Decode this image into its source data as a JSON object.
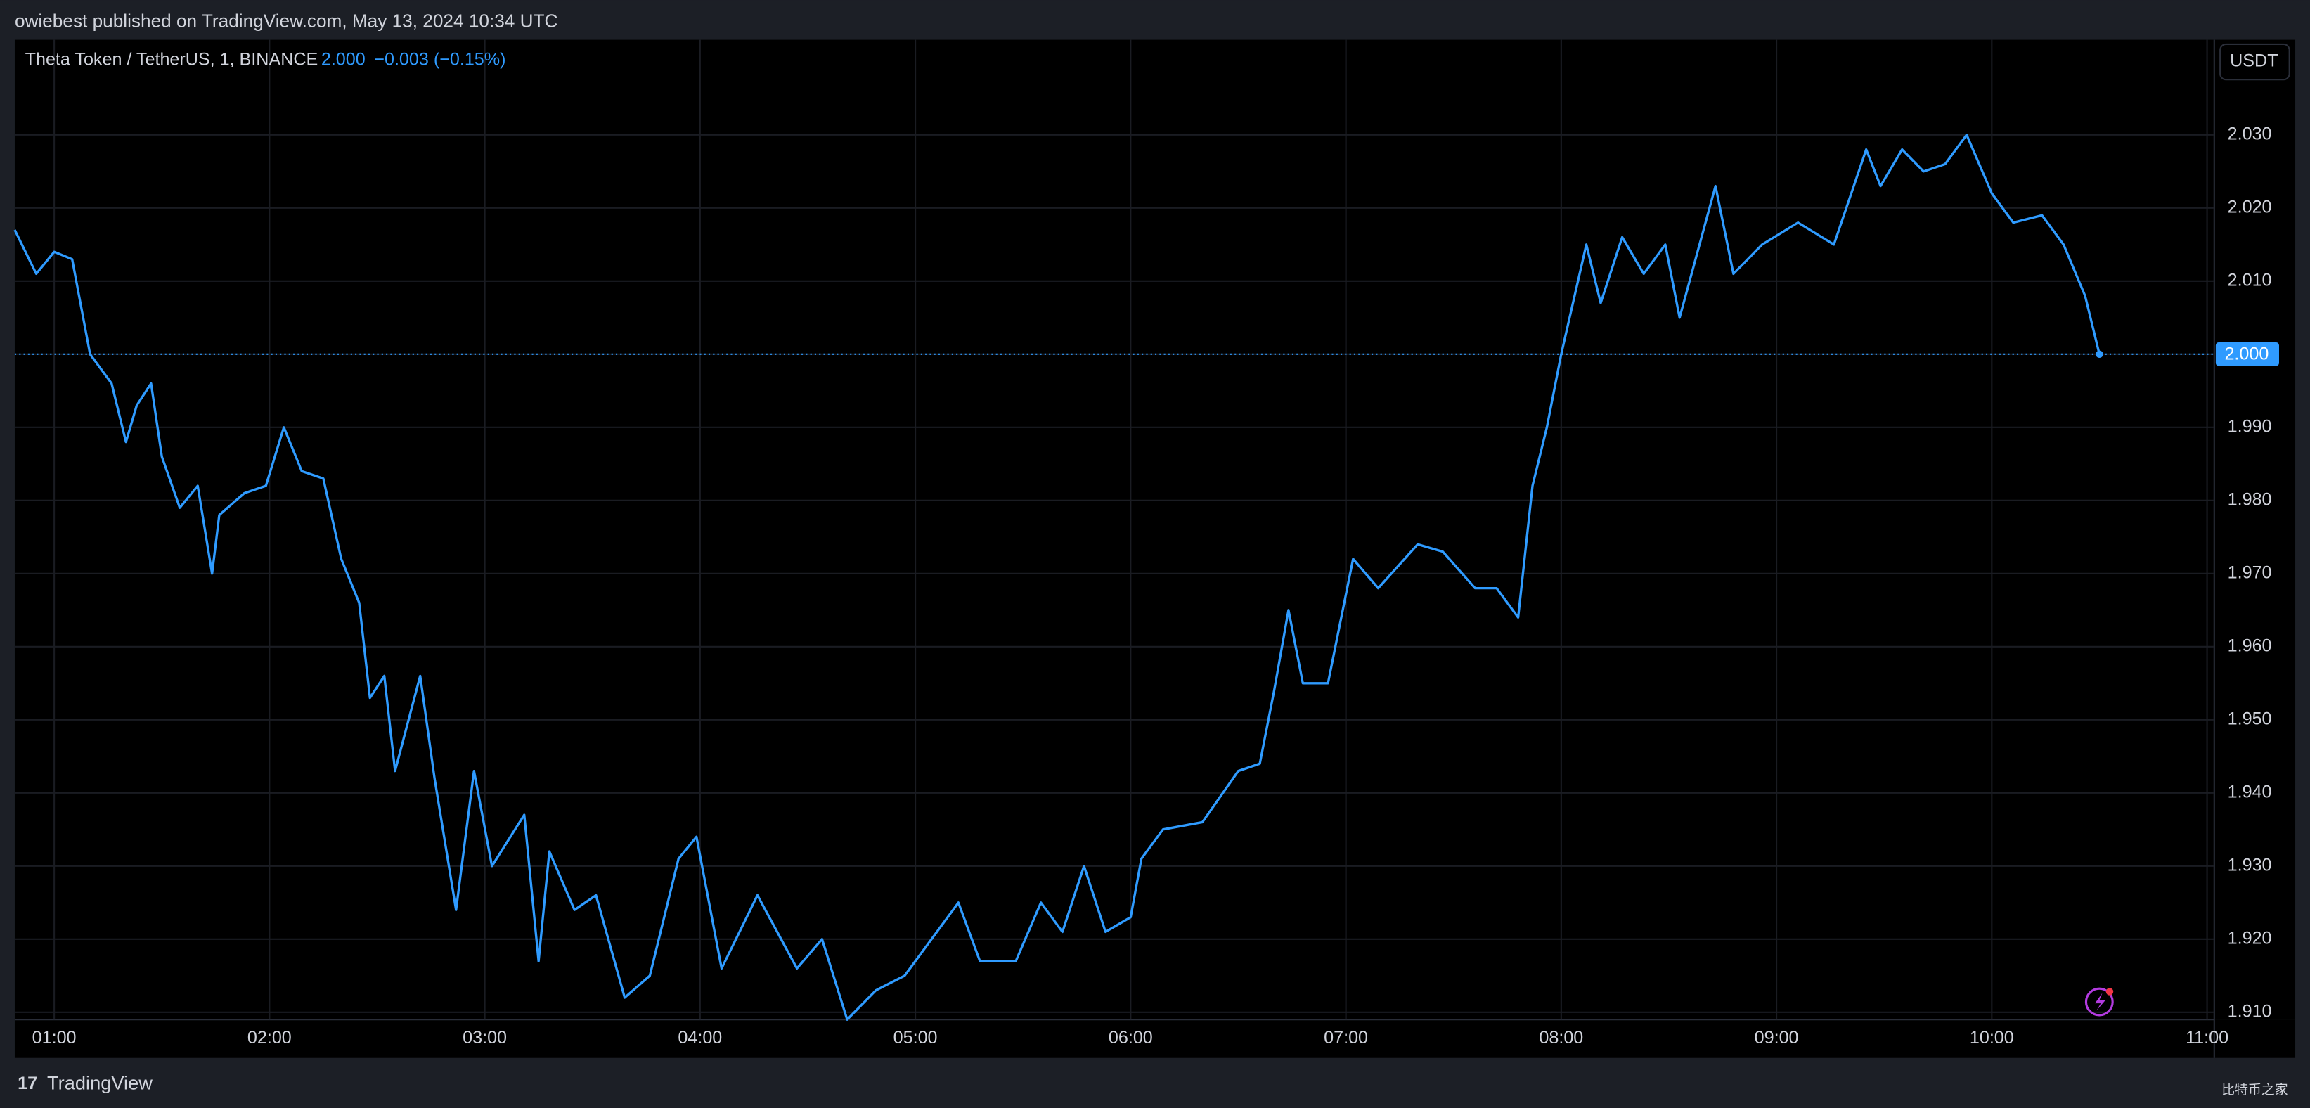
{
  "header": {
    "publisher": "owiebest published on TradingView.com, May 13, 2024 10:34 UTC"
  },
  "chart_data": {
    "type": "line",
    "title": "Theta Token / TetherUS, 1, BINANCE",
    "price": "2.000",
    "change": "−0.003 (−0.15%)",
    "axis_unit": "USDT",
    "x": [
      "00:49",
      "00:55",
      "01:00",
      "01:05",
      "01:10",
      "01:16",
      "01:20",
      "01:23",
      "01:27",
      "01:30",
      "01:35",
      "01:40",
      "01:44",
      "01:46",
      "01:53",
      "01:59",
      "02:04",
      "02:09",
      "02:15",
      "02:20",
      "02:25",
      "02:28",
      "02:32",
      "02:35",
      "02:42",
      "02:46",
      "02:52",
      "02:57",
      "03:02",
      "03:11",
      "03:15",
      "03:18",
      "03:25",
      "03:31",
      "03:39",
      "03:46",
      "03:54",
      "03:59",
      "04:06",
      "04:16",
      "04:27",
      "04:34",
      "04:41",
      "04:49",
      "04:57",
      "05:12",
      "05:18",
      "05:28",
      "05:35",
      "05:41",
      "05:47",
      "05:53",
      "06:00",
      "06:03",
      "06:09",
      "06:20",
      "06:30",
      "06:36",
      "06:40",
      "06:44",
      "06:48",
      "06:55",
      "07:02",
      "07:09",
      "07:20",
      "07:27",
      "07:36",
      "07:42",
      "07:48",
      "07:52",
      "07:56",
      "08:00",
      "08:07",
      "08:11",
      "08:17",
      "08:23",
      "08:29",
      "08:33",
      "08:43",
      "08:48",
      "08:56",
      "09:06",
      "09:16",
      "09:25",
      "09:29",
      "09:35",
      "09:41",
      "09:47",
      "09:53",
      "10:00",
      "10:06",
      "10:14",
      "10:20",
      "10:26",
      "10:30"
    ],
    "series": [
      {
        "name": "Theta Token / TetherUS",
        "color": "#2f9bff",
        "values": [
          2.017,
          2.011,
          2.014,
          2.013,
          2.0,
          1.996,
          1.988,
          1.993,
          1.996,
          1.986,
          1.979,
          1.982,
          1.97,
          1.978,
          1.981,
          1.982,
          1.99,
          1.984,
          1.983,
          1.972,
          1.966,
          1.953,
          1.956,
          1.943,
          1.956,
          1.942,
          1.924,
          1.943,
          1.93,
          1.937,
          1.917,
          1.932,
          1.924,
          1.926,
          1.912,
          1.915,
          1.931,
          1.934,
          1.916,
          1.926,
          1.916,
          1.92,
          1.909,
          1.913,
          1.915,
          1.925,
          1.917,
          1.917,
          1.925,
          1.921,
          1.93,
          1.921,
          1.923,
          1.931,
          1.935,
          1.936,
          1.943,
          1.944,
          1.954,
          1.965,
          1.955,
          1.955,
          1.972,
          1.968,
          1.974,
          1.973,
          1.968,
          1.968,
          1.964,
          1.982,
          1.99,
          2.0,
          2.015,
          2.007,
          2.016,
          2.011,
          2.015,
          2.005,
          2.023,
          2.011,
          2.015,
          2.018,
          2.015,
          2.028,
          2.023,
          2.028,
          2.025,
          2.026,
          2.03,
          2.022,
          2.018,
          2.019,
          2.015,
          2.008,
          2.0
        ]
      }
    ],
    "last_price": {
      "value": 2,
      "label": "2.000"
    },
    "xlim": [
      "00:49",
      "11:02"
    ],
    "xticks": [
      "01:00",
      "02:00",
      "03:00",
      "04:00",
      "05:00",
      "06:00",
      "07:00",
      "08:00",
      "09:00",
      "10:00",
      "11:00"
    ],
    "ylim": [
      1.909,
      2.043
    ],
    "yticks": [
      {
        "value": 1.91,
        "label": "1.910"
      },
      {
        "value": 1.92,
        "label": "1.920"
      },
      {
        "value": 1.93,
        "label": "1.930"
      },
      {
        "value": 1.94,
        "label": "1.940"
      },
      {
        "value": 1.95,
        "label": "1.950"
      },
      {
        "value": 1.96,
        "label": "1.960"
      },
      {
        "value": 1.97,
        "label": "1.970"
      },
      {
        "value": 1.98,
        "label": "1.980"
      },
      {
        "value": 1.99,
        "label": "1.990"
      },
      {
        "value": 2.0,
        "label": "2.000"
      },
      {
        "value": 2.01,
        "label": "2.010"
      },
      {
        "value": 2.02,
        "label": "2.020"
      },
      {
        "value": 2.03,
        "label": "2.030"
      }
    ],
    "grid": true
  },
  "footer": {
    "brand": "TradingView",
    "watermark": "比特币之家"
  }
}
